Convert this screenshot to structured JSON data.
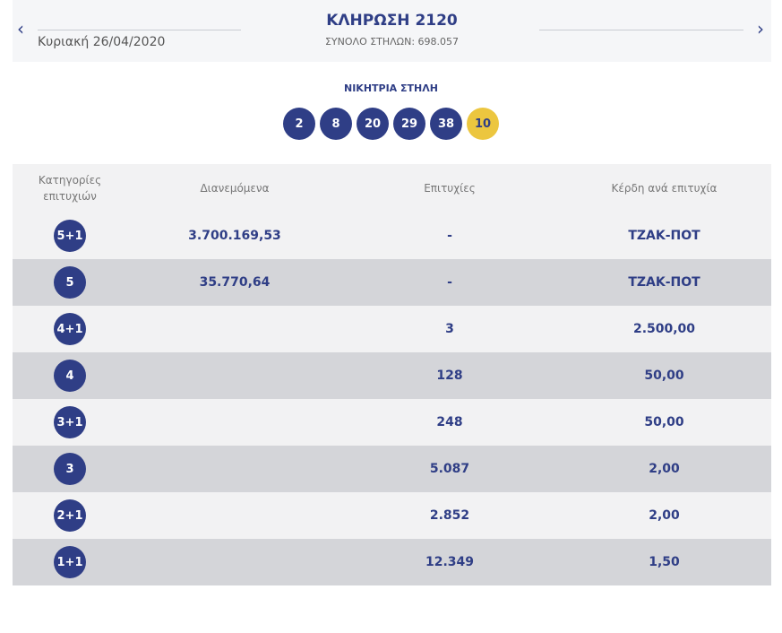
{
  "header": {
    "title": "ΚΛΗΡΩΣΗ 2120",
    "date": "Κυριακή 26/04/2020",
    "total": "ΣΥΝΟΛΟ ΣΤΗΛΩΝ: 698.057",
    "prev_icon": "‹",
    "next_icon": "›"
  },
  "winning": {
    "label": "ΝΙΚΗΤΡΙΑ ΣΤΗΛΗ",
    "numbers": [
      "2",
      "8",
      "20",
      "29",
      "38"
    ],
    "joker": "10"
  },
  "table": {
    "headers": {
      "category": "Κατηγορίες επιτυχιών",
      "distributed": "Διανεμόμενα",
      "winners": "Επιτυχίες",
      "prize": "Κέρδη ανά επιτυχία"
    },
    "rows": [
      {
        "category": "5+1",
        "distributed": "3.700.169,53",
        "winners": "-",
        "prize": "ΤΖΑΚ-ΠΟΤ"
      },
      {
        "category": "5",
        "distributed": "35.770,64",
        "winners": "-",
        "prize": "ΤΖΑΚ-ΠΟΤ"
      },
      {
        "category": "4+1",
        "distributed": "",
        "winners": "3",
        "prize": "2.500,00"
      },
      {
        "category": "4",
        "distributed": "",
        "winners": "128",
        "prize": "50,00"
      },
      {
        "category": "3+1",
        "distributed": "",
        "winners": "248",
        "prize": "50,00"
      },
      {
        "category": "3",
        "distributed": "",
        "winners": "5.087",
        "prize": "2,00"
      },
      {
        "category": "2+1",
        "distributed": "",
        "winners": "2.852",
        "prize": "2,00"
      },
      {
        "category": "1+1",
        "distributed": "",
        "winners": "12.349",
        "prize": "1,50"
      }
    ]
  },
  "colors": {
    "primary": "#2f3e86",
    "joker": "#ecc63f"
  }
}
